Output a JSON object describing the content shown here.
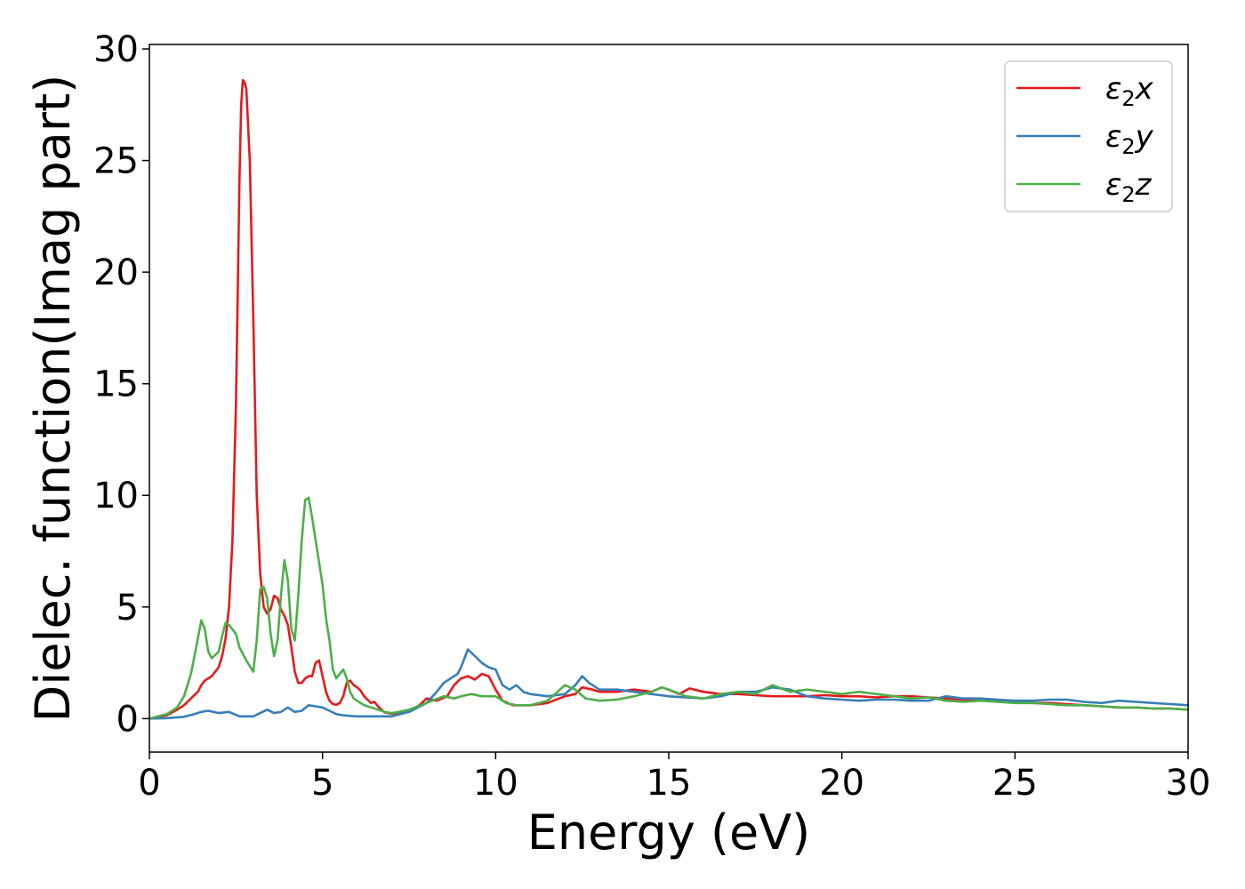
{
  "chart_data": {
    "type": "line",
    "title": "",
    "xlabel": "Energy (eV)",
    "ylabel": "Dielec. function(Imag part)",
    "xlim": [
      0,
      30
    ],
    "ylim": [
      -1.5,
      30.2
    ],
    "xticks": [
      0,
      5,
      10,
      15,
      20,
      25,
      30
    ],
    "yticks": [
      0,
      5,
      10,
      15,
      20,
      25,
      30
    ],
    "grid": false,
    "legend_position": "top-right",
    "series": [
      {
        "name": "ε₂x",
        "label_base": "ε",
        "label_sub": "2",
        "label_var": "x",
        "color": "#e41a1c",
        "x": [
          0,
          0.5,
          0.8,
          1.0,
          1.2,
          1.4,
          1.5,
          1.6,
          1.8,
          2.0,
          2.1,
          2.2,
          2.3,
          2.4,
          2.5,
          2.55,
          2.6,
          2.65,
          2.7,
          2.75,
          2.8,
          2.9,
          3.0,
          3.1,
          3.2,
          3.3,
          3.4,
          3.5,
          3.6,
          3.7,
          3.8,
          3.9,
          4.0,
          4.1,
          4.2,
          4.3,
          4.4,
          4.5,
          4.6,
          4.7,
          4.8,
          4.9,
          5.0,
          5.1,
          5.2,
          5.3,
          5.4,
          5.5,
          5.6,
          5.7,
          5.8,
          5.9,
          6.0,
          6.1,
          6.2,
          6.3,
          6.4,
          6.5,
          6.6,
          6.7,
          6.8,
          7.0,
          7.2,
          7.5,
          7.8,
          8.0,
          8.3,
          8.6,
          8.8,
          9.0,
          9.2,
          9.4,
          9.6,
          9.8,
          10.0,
          10.2,
          10.5,
          11.0,
          11.5,
          12.0,
          12.3,
          12.5,
          12.8,
          13.0,
          13.5,
          14.0,
          14.5,
          14.8,
          15.0,
          15.3,
          15.6,
          16.0,
          16.5,
          17.0,
          17.5,
          18.0,
          18.5,
          19.0,
          19.5,
          20.0,
          20.5,
          21.0,
          21.5,
          22.0,
          22.5,
          23.0,
          23.5,
          24.0,
          24.5,
          25.0,
          25.5,
          26.0,
          26.5,
          27.0,
          27.5,
          28.0,
          28.5,
          29.0,
          29.5,
          30.0
        ],
        "y": [
          0,
          0.15,
          0.4,
          0.6,
          0.9,
          1.2,
          1.5,
          1.7,
          1.9,
          2.3,
          2.8,
          3.6,
          5.0,
          8.0,
          14.0,
          19.0,
          24.0,
          27.5,
          28.6,
          28.5,
          28.2,
          25.0,
          18.0,
          10.0,
          6.5,
          5.0,
          4.7,
          4.9,
          5.5,
          5.4,
          4.9,
          4.6,
          4.2,
          3.2,
          2.1,
          1.6,
          1.6,
          1.8,
          1.9,
          1.9,
          2.5,
          2.6,
          1.9,
          1.2,
          0.8,
          0.65,
          0.62,
          0.7,
          1.0,
          1.6,
          1.7,
          1.5,
          1.4,
          1.25,
          1.0,
          0.85,
          0.7,
          0.75,
          0.55,
          0.4,
          0.28,
          0.22,
          0.25,
          0.35,
          0.6,
          0.9,
          0.8,
          1.0,
          1.5,
          1.8,
          1.9,
          1.75,
          2.0,
          1.9,
          1.3,
          0.8,
          0.6,
          0.6,
          0.7,
          1.0,
          1.1,
          1.4,
          1.3,
          1.2,
          1.2,
          1.3,
          1.2,
          1.4,
          1.3,
          1.1,
          1.35,
          1.2,
          1.1,
          1.1,
          1.05,
          1.0,
          1.0,
          1.0,
          1.05,
          1.0,
          1.0,
          0.95,
          1.0,
          1.0,
          0.95,
          0.9,
          0.85,
          0.85,
          0.8,
          0.75,
          0.7,
          0.7,
          0.65,
          0.6,
          0.55,
          0.5,
          0.5,
          0.45,
          0.45,
          0.4
        ]
      },
      {
        "name": "ε₂y",
        "label_base": "ε",
        "label_sub": "2",
        "label_var": "y",
        "color": "#377eb8",
        "x": [
          0,
          0.5,
          1.0,
          1.3,
          1.5,
          1.7,
          2.0,
          2.3,
          2.6,
          3.0,
          3.2,
          3.4,
          3.6,
          3.8,
          4.0,
          4.2,
          4.4,
          4.6,
          4.8,
          5.0,
          5.2,
          5.4,
          5.6,
          5.8,
          6.0,
          6.5,
          7.0,
          7.5,
          8.0,
          8.3,
          8.5,
          8.7,
          8.9,
          9.0,
          9.2,
          9.4,
          9.6,
          9.8,
          10.0,
          10.2,
          10.4,
          10.6,
          10.8,
          11.0,
          11.5,
          12.0,
          12.3,
          12.5,
          12.7,
          13.0,
          13.5,
          14.0,
          14.5,
          15.0,
          15.5,
          16.0,
          16.5,
          17.0,
          17.5,
          18.0,
          18.5,
          19.0,
          19.5,
          20.0,
          20.5,
          21.0,
          21.5,
          22.0,
          22.5,
          23.0,
          23.5,
          24.0,
          24.5,
          25.0,
          25.5,
          26.0,
          26.5,
          27.0,
          27.5,
          28.0,
          28.5,
          29.0,
          29.5,
          30.0
        ],
        "y": [
          0,
          0.02,
          0.08,
          0.2,
          0.3,
          0.35,
          0.25,
          0.3,
          0.1,
          0.1,
          0.25,
          0.4,
          0.25,
          0.3,
          0.5,
          0.3,
          0.35,
          0.6,
          0.55,
          0.5,
          0.35,
          0.2,
          0.15,
          0.12,
          0.1,
          0.1,
          0.1,
          0.3,
          0.7,
          1.2,
          1.6,
          1.8,
          2.0,
          2.3,
          3.1,
          2.8,
          2.5,
          2.3,
          2.2,
          1.5,
          1.3,
          1.5,
          1.2,
          1.1,
          1.0,
          1.1,
          1.5,
          1.9,
          1.6,
          1.3,
          1.3,
          1.2,
          1.1,
          1.0,
          0.95,
          0.9,
          1.0,
          1.2,
          1.2,
          1.4,
          1.3,
          1.0,
          0.9,
          0.85,
          0.8,
          0.85,
          0.85,
          0.8,
          0.8,
          1.0,
          0.9,
          0.9,
          0.85,
          0.8,
          0.8,
          0.85,
          0.85,
          0.75,
          0.7,
          0.8,
          0.75,
          0.7,
          0.65,
          0.6
        ]
      },
      {
        "name": "ε₂z",
        "label_base": "ε",
        "label_sub": "2",
        "label_var": "z",
        "color": "#4daf4a",
        "x": [
          0,
          0.5,
          0.8,
          1.0,
          1.2,
          1.35,
          1.5,
          1.6,
          1.7,
          1.8,
          2.0,
          2.1,
          2.2,
          2.3,
          2.5,
          2.6,
          2.8,
          3.0,
          3.1,
          3.2,
          3.3,
          3.4,
          3.5,
          3.6,
          3.7,
          3.8,
          3.9,
          4.0,
          4.1,
          4.2,
          4.3,
          4.4,
          4.5,
          4.6,
          4.7,
          4.8,
          4.9,
          5.0,
          5.1,
          5.2,
          5.3,
          5.4,
          5.5,
          5.6,
          5.7,
          5.8,
          5.9,
          6.0,
          6.2,
          6.4,
          6.6,
          6.8,
          7.0,
          7.2,
          7.5,
          8.0,
          8.5,
          8.8,
          9.0,
          9.3,
          9.6,
          10.0,
          10.3,
          10.6,
          11.0,
          11.5,
          12.0,
          12.3,
          12.6,
          13.0,
          13.5,
          14.0,
          14.5,
          14.8,
          15.0,
          15.5,
          16.0,
          16.5,
          17.0,
          17.5,
          18.0,
          18.5,
          19.0,
          19.5,
          20.0,
          20.5,
          21.0,
          21.5,
          22.0,
          22.5,
          23.0,
          23.5,
          24.0,
          24.5,
          25.0,
          25.5,
          26.0,
          26.5,
          27.0,
          27.5,
          28.0,
          28.5,
          29.0,
          29.5,
          30.0
        ],
        "y": [
          0,
          0.2,
          0.5,
          1.0,
          2.0,
          3.2,
          4.4,
          4.0,
          3.0,
          2.7,
          3.0,
          3.7,
          4.3,
          4.2,
          3.8,
          3.2,
          2.6,
          2.1,
          3.5,
          5.8,
          5.9,
          5.4,
          3.8,
          2.8,
          3.5,
          5.5,
          7.1,
          6.2,
          4.0,
          3.5,
          5.5,
          8.0,
          9.8,
          9.9,
          9.0,
          8.0,
          7.0,
          6.0,
          4.5,
          3.5,
          2.2,
          1.8,
          2.0,
          2.2,
          1.8,
          1.2,
          0.9,
          0.8,
          0.6,
          0.5,
          0.4,
          0.3,
          0.25,
          0.3,
          0.4,
          0.7,
          1.0,
          0.9,
          1.0,
          1.1,
          1.0,
          1.0,
          0.7,
          0.6,
          0.6,
          0.8,
          1.5,
          1.3,
          0.9,
          0.8,
          0.85,
          1.0,
          1.2,
          1.4,
          1.3,
          1.0,
          0.9,
          1.1,
          1.2,
          1.1,
          1.5,
          1.2,
          1.3,
          1.2,
          1.1,
          1.2,
          1.1,
          1.0,
          0.9,
          0.95,
          0.8,
          0.75,
          0.8,
          0.75,
          0.7,
          0.7,
          0.65,
          0.6,
          0.6,
          0.55,
          0.5,
          0.5,
          0.45,
          0.45,
          0.4
        ]
      }
    ]
  }
}
